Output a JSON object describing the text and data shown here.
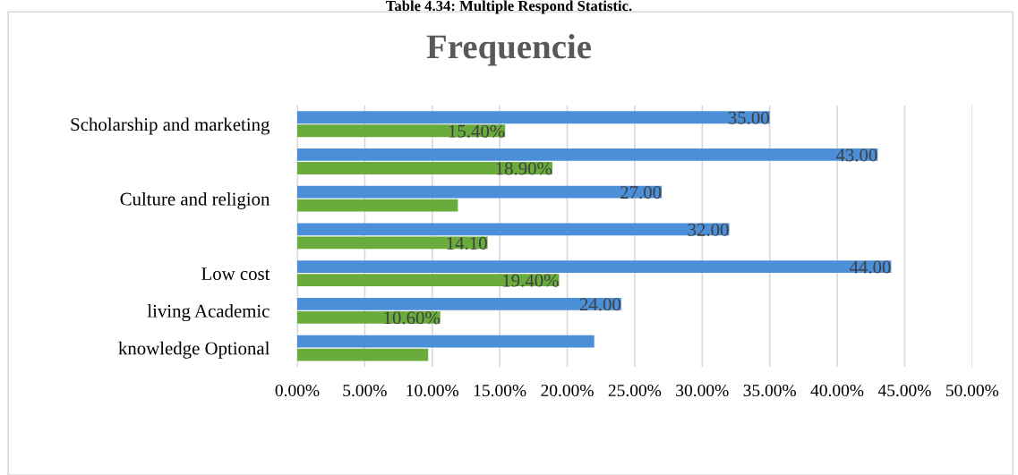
{
  "chart_data": {
    "type": "bar",
    "orientation": "horizontal",
    "title": "Frequencie",
    "annotations": [
      "Table 4.34: Multiple Respond Statistic."
    ],
    "categories": [
      "Scholarship and marketing",
      null,
      "Culture and religion",
      null,
      "Low cost",
      "living Academic",
      "knowledge Optional"
    ],
    "series": [
      {
        "color": "#4a8fd8",
        "values": [
          35,
          43,
          27,
          32,
          44,
          24,
          22
        ],
        "value_labels": [
          "35.00",
          "43.00",
          "27.00",
          "32.00",
          "44.00",
          "24.00",
          null
        ]
      },
      {
        "color": "#6aac3c",
        "values": [
          15.4,
          18.9,
          11.9,
          14.1,
          19.4,
          10.6,
          9.7
        ],
        "value_labels": [
          "15.40%",
          "18.90%",
          null,
          "14.10",
          "19.40%",
          "10.60%",
          null
        ]
      }
    ],
    "xlim": [
      0,
      50
    ],
    "xticks": [
      {
        "value": 0,
        "label": "0.00%"
      },
      {
        "value": 5,
        "label": "5.00%"
      },
      {
        "value": 10,
        "label": "10.00%"
      },
      {
        "value": 15,
        "label": "15.00%"
      },
      {
        "value": 20,
        "label": "20.00%"
      },
      {
        "value": 25,
        "label": "25.00%"
      },
      {
        "value": 30,
        "label": "30.00%"
      },
      {
        "value": 35,
        "label": "35.00%"
      },
      {
        "value": 40,
        "label": "40.00%"
      },
      {
        "value": 45,
        "label": "45.00%"
      },
      {
        "value": 50,
        "label": "50.00%"
      }
    ],
    "grid": "x"
  }
}
